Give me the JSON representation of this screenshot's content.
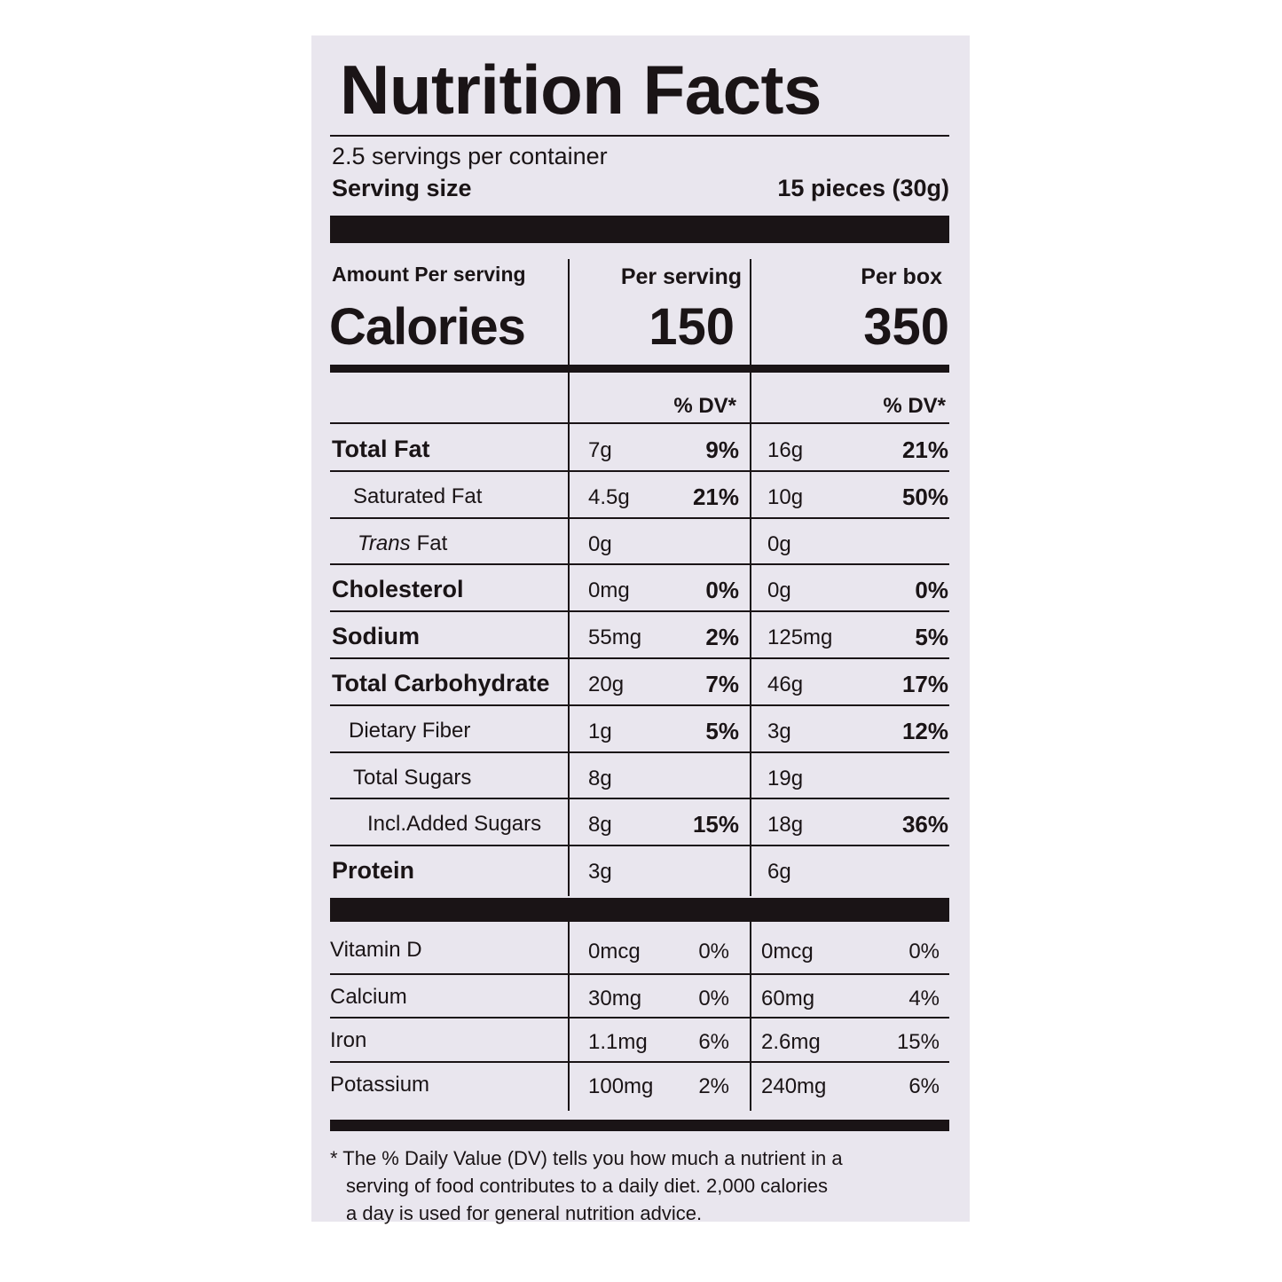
{
  "title": "Nutrition Facts",
  "servings": "2.5 servings per container",
  "serving_size": {
    "label": "Serving size",
    "value": "15 pieces (30g)"
  },
  "calories": {
    "amount_header": "Amount Per serving",
    "label": "Calories",
    "col1_header": "Per serving",
    "col2_header": "Per box",
    "col1": "150",
    "col2": "350"
  },
  "dv_headers": [
    "% DV*",
    "% DV*"
  ],
  "nutrients": [
    {
      "name": "Total Fat",
      "amount1": "7g",
      "dv1": "9%",
      "amount2": "16g",
      "dv2": "21%"
    },
    {
      "name": "Saturated Fat",
      "amount1": "4.5g",
      "dv1": "21%",
      "amount2": "10g",
      "dv2": "50%"
    },
    {
      "name_italic": "Trans",
      "name": "Fat",
      "amount1": "0g",
      "amount2": "0g"
    },
    {
      "name": "Cholesterol",
      "amount1": "0mg",
      "dv1": "0%",
      "amount2": "0g",
      "dv2": "0%"
    },
    {
      "name": "Sodium",
      "amount1": "55mg",
      "dv1": "2%",
      "amount2": "125mg",
      "dv2": "5%"
    },
    {
      "name": "Total Carbohydrate",
      "amount1": "20g",
      "dv1": "7%",
      "amount2": "46g",
      "dv2": "17%"
    },
    {
      "name": "Dietary Fiber",
      "amount1": "1g",
      "dv1": "5%",
      "amount2": "3g",
      "dv2": "12%"
    },
    {
      "name": "Total Sugars",
      "amount1": "8g",
      "amount2": "19g"
    },
    {
      "name": "Incl.Added Sugars",
      "amount1": "8g",
      "dv1": "15%",
      "amount2": "18g",
      "dv2": "36%"
    },
    {
      "name": "Protein",
      "amount1": "3g",
      "amount2": "6g"
    }
  ],
  "vitamins": [
    {
      "name": "Vitamin D",
      "amount1": "0mcg",
      "dv1": "0%",
      "amount2": "0mcg",
      "dv2": "0%"
    },
    {
      "name": "Calcium",
      "amount1": "30mg",
      "dv1": "0%",
      "amount2": "60mg",
      "dv2": "4%"
    },
    {
      "name": "Iron",
      "amount1": "1.1mg",
      "dv1": "6%",
      "amount2": "2.6mg",
      "dv2": "15%"
    },
    {
      "name": "Potassium",
      "amount1": "100mg",
      "dv1": "2%",
      "amount2": "240mg",
      "dv2": "6%"
    }
  ],
  "footnote": [
    "* The % Daily Value (DV) tells you how much a nutrient in a",
    "serving of food contributes to a daily diet. 2,000 calories",
    "a day is used for general nutrition advice."
  ]
}
